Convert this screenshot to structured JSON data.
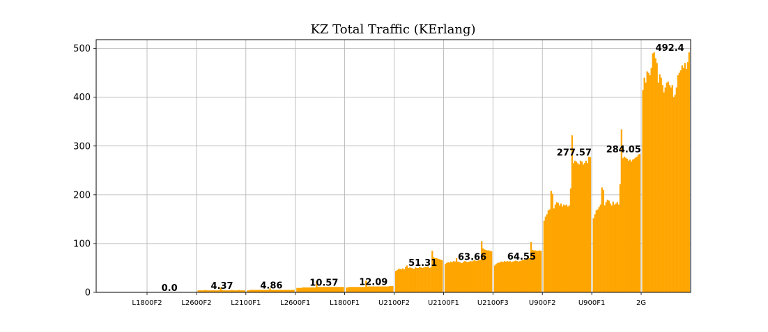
{
  "chart_data": {
    "type": "bar",
    "title": "KZ Total Traffic (KErlang)",
    "xlabel": "",
    "ylabel": "",
    "ylim": [
      0,
      518
    ],
    "yticks": [
      0,
      100,
      200,
      300,
      400,
      500
    ],
    "grid": true,
    "bar_color": "#FFA500",
    "groups": [
      {
        "name": "L1800F2",
        "label": "0.0",
        "value": 0.0,
        "values": [
          0,
          0,
          0,
          0,
          0,
          0,
          0,
          0,
          0,
          0,
          0,
          0,
          0,
          0,
          0,
          0,
          0,
          0,
          0,
          0,
          0,
          0,
          0,
          0,
          0,
          0,
          0,
          0,
          0,
          0,
          0,
          0,
          0,
          0
        ]
      },
      {
        "name": "L2600F2",
        "label": "4.37",
        "value": 4.37,
        "values": [
          4,
          4,
          4,
          4,
          4,
          5,
          4,
          4,
          4,
          4,
          4,
          4,
          4,
          4,
          4,
          4,
          10,
          5,
          4,
          4,
          4,
          4,
          4,
          4,
          5,
          4,
          4,
          4,
          4,
          5,
          4,
          4,
          4,
          4
        ]
      },
      {
        "name": "L2100F1",
        "label": "4.86",
        "value": 4.86,
        "values": [
          4,
          4,
          5,
          5,
          5,
          5,
          5,
          5,
          5,
          5,
          5,
          5,
          5,
          5,
          5,
          5,
          8,
          5,
          5,
          5,
          5,
          5,
          5,
          5,
          5,
          5,
          5,
          5,
          5,
          5,
          5,
          5,
          5,
          5
        ]
      },
      {
        "name": "L2600F1",
        "label": "10.57",
        "value": 10.57,
        "values": [
          9,
          9,
          9,
          9,
          10,
          10,
          10,
          10,
          10,
          10,
          10,
          10,
          10,
          10,
          23,
          11,
          11,
          11,
          11,
          11,
          11,
          11,
          11,
          11,
          11,
          11,
          11,
          11,
          11,
          11,
          11,
          11,
          11,
          11
        ]
      },
      {
        "name": "L1800F1",
        "label": "12.09",
        "value": 12.09,
        "values": [
          10,
          10,
          11,
          11,
          11,
          11,
          11,
          11,
          11,
          11,
          11,
          11,
          11,
          11,
          24,
          12,
          12,
          12,
          12,
          12,
          12,
          12,
          12,
          12,
          12,
          12,
          12,
          12,
          12,
          12,
          12,
          13,
          13,
          13
        ]
      },
      {
        "name": "U2100F2",
        "label": "51.31",
        "value": 51.31,
        "values": [
          44,
          46,
          48,
          48,
          47,
          49,
          47,
          52,
          55,
          50,
          51,
          50,
          49,
          48,
          51,
          50,
          50,
          52,
          51,
          50,
          51,
          52,
          52,
          53,
          50,
          51,
          85,
          72,
          70,
          70,
          69,
          68,
          67,
          66
        ]
      },
      {
        "name": "U2100F1",
        "label": "63.66",
        "value": 63.66,
        "values": [
          58,
          60,
          62,
          61,
          63,
          62,
          64,
          63,
          70,
          63,
          62,
          61,
          60,
          63,
          64,
          63,
          62,
          63,
          64,
          63,
          65,
          66,
          64,
          65,
          66,
          67,
          105,
          90,
          88,
          87,
          86,
          86,
          85,
          84
        ]
      },
      {
        "name": "U2100F3",
        "label": "64.55",
        "value": 64.55,
        "values": [
          55,
          58,
          60,
          61,
          62,
          63,
          62,
          64,
          63,
          64,
          63,
          64,
          62,
          63,
          64,
          65,
          64,
          63,
          64,
          65,
          66,
          67,
          66,
          68,
          69,
          70,
          103,
          87,
          86,
          86,
          85,
          85,
          86,
          85
        ]
      },
      {
        "name": "U900F2",
        "label": "277.57",
        "value": 277.57,
        "values": [
          147,
          155,
          160,
          168,
          170,
          208,
          202,
          172,
          180,
          185,
          183,
          178,
          182,
          176,
          180,
          178,
          180,
          176,
          178,
          213,
          322,
          265,
          270,
          268,
          265,
          262,
          270,
          268,
          262,
          265,
          270,
          265,
          278,
          277
        ]
      },
      {
        "name": "U900F1",
        "label": "284.05",
        "value": 284.05,
        "values": [
          152,
          160,
          168,
          170,
          175,
          180,
          215,
          210,
          178,
          185,
          190,
          188,
          182,
          178,
          186,
          180,
          182,
          185,
          180,
          222,
          334,
          275,
          278,
          276,
          274,
          270,
          272,
          268,
          272,
          274,
          276,
          278,
          282,
          284
        ]
      },
      {
        "name": "2G",
        "label": "492.4",
        "value": 492.4,
        "values": [
          415,
          440,
          430,
          453,
          450,
          445,
          460,
          490,
          492,
          480,
          470,
          430,
          447,
          440,
          425,
          410,
          420,
          430,
          432,
          425,
          420,
          425,
          400,
          405,
          420,
          445,
          450,
          455,
          465,
          460,
          470,
          458,
          472,
          492
        ]
      }
    ]
  }
}
